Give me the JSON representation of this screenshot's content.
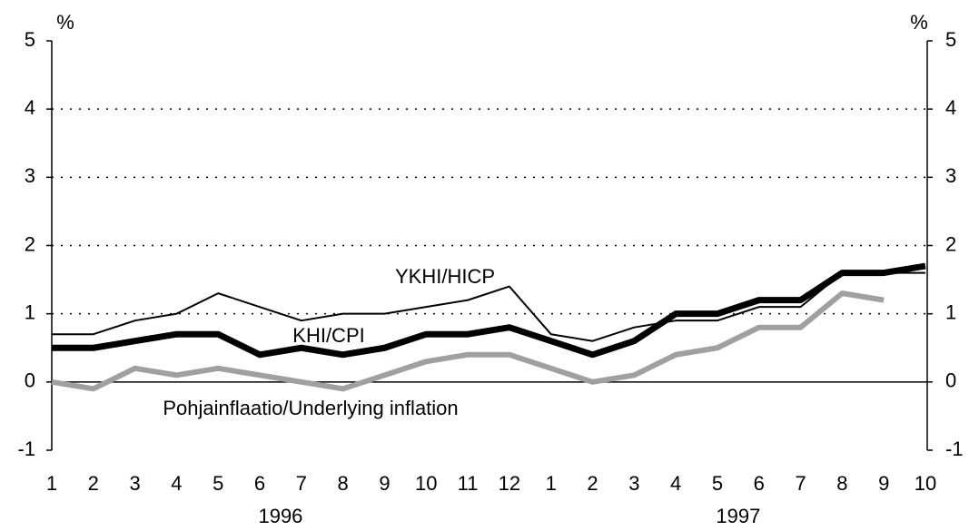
{
  "chart_data": {
    "type": "line",
    "y_label": "%",
    "y2_label": "%",
    "categories": [
      "1",
      "2",
      "3",
      "4",
      "5",
      "6",
      "7",
      "8",
      "9",
      "10",
      "11",
      "12",
      "1",
      "2",
      "3",
      "4",
      "5",
      "6",
      "7",
      "8",
      "9",
      "10"
    ],
    "years": [
      "1996",
      "1997"
    ],
    "series": [
      {
        "name": "YKHI/HICP",
        "color": "#000000",
        "values": [
          0.7,
          0.7,
          0.9,
          1.0,
          1.3,
          1.1,
          0.9,
          1.0,
          1.0,
          1.1,
          1.2,
          1.4,
          0.7,
          0.6,
          0.8,
          0.9,
          0.9,
          1.1,
          1.1,
          1.6,
          1.6,
          1.6
        ]
      },
      {
        "name": "KHI/CPI",
        "color": "#000000",
        "values": [
          0.5,
          0.5,
          0.6,
          0.7,
          0.7,
          0.4,
          0.5,
          0.4,
          0.5,
          0.7,
          0.7,
          0.8,
          0.6,
          0.4,
          0.6,
          1.0,
          1.0,
          1.2,
          1.2,
          1.6,
          1.6,
          1.7
        ]
      },
      {
        "name": "Pohjainflaatio/Underlying inflation",
        "color": "#a0a0a0",
        "values": [
          0.0,
          -0.1,
          0.2,
          0.1,
          0.2,
          0.1,
          0.0,
          -0.1,
          0.1,
          0.3,
          0.4,
          0.4,
          0.2,
          0.0,
          0.1,
          0.4,
          0.5,
          0.8,
          0.8,
          1.3,
          1.2,
          null
        ]
      }
    ],
    "ylim": [
      -1,
      5
    ],
    "yticks": [
      -1,
      0,
      1,
      2,
      3,
      4,
      5
    ],
    "y2lim": [
      -1,
      5
    ],
    "y2ticks": [
      -1,
      0,
      1,
      2,
      3,
      4,
      5
    ],
    "grid": true
  }
}
